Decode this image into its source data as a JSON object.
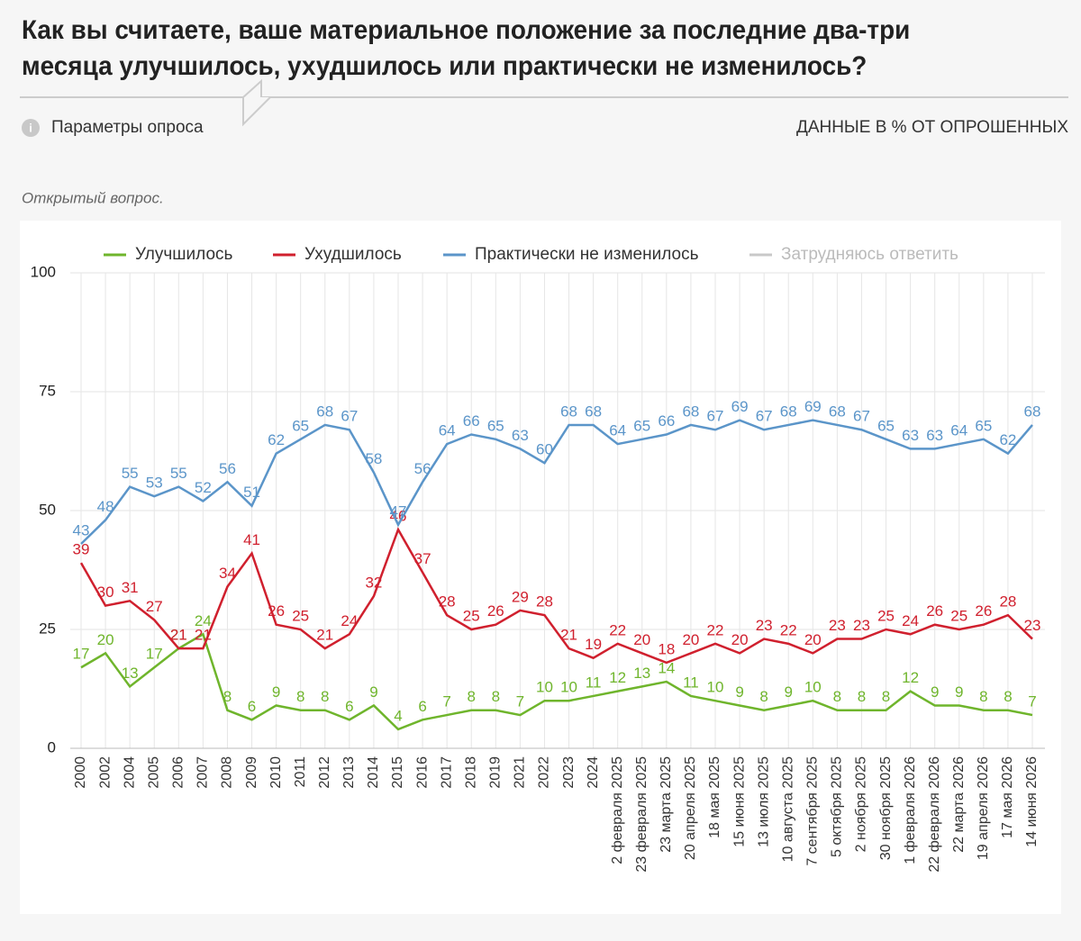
{
  "header": {
    "title_lines": [
      "Как вы считаете, ваше материальное положение за последние два-три",
      "месяца улучшилось, ухудшилось или практически не изменилось?"
    ],
    "params": "Параметры опроса",
    "units": "ДАННЫЕ В % ОТ ОПРОШЕННЫХ",
    "note": "Открытый вопрос."
  },
  "chart_data": {
    "type": "line",
    "categories": [
      "2000",
      "2002",
      "2004",
      "2005",
      "2006",
      "2007",
      "2008",
      "2009",
      "2010",
      "2011",
      "2012",
      "2013",
      "2014",
      "2015",
      "2016",
      "2017",
      "2018",
      "2019",
      "2021",
      "2022",
      "2023",
      "2024",
      "2 февраля 2025",
      "23 февраля 2025",
      "23 марта 2025",
      "20 апреля 2025",
      "18 мая 2025",
      "15 июня 2025",
      "13 июля 2025",
      "10 августа 2025",
      "7 сентября 2025",
      "5 октября 2025",
      "2 ноября 2025",
      "30 ноября 2025",
      "1 февраля 2026",
      "22 февраля 2026",
      "22 марта 2026",
      "19 апреля 2026",
      "17 мая 2026",
      "14 июня 2026"
    ],
    "series": [
      {
        "name": "Улучшилось",
        "color": "#6fb52c",
        "values": [
          17,
          20,
          13,
          17,
          21,
          24,
          8,
          6,
          9,
          8,
          8,
          6,
          9,
          4,
          6,
          7,
          8,
          8,
          7,
          10,
          10,
          11,
          12,
          13,
          14,
          11,
          10,
          9,
          8,
          9,
          10,
          8,
          8,
          8,
          12,
          9,
          9,
          8,
          8,
          7
        ]
      },
      {
        "name": "Ухудшилось",
        "color": "#d0202e",
        "values": [
          39,
          30,
          31,
          27,
          21,
          21,
          34,
          41,
          26,
          25,
          21,
          24,
          32,
          46,
          37,
          28,
          25,
          26,
          29,
          28,
          21,
          19,
          22,
          20,
          18,
          20,
          22,
          20,
          23,
          22,
          20,
          23,
          23,
          25,
          24,
          26,
          25,
          26,
          28,
          23
        ]
      },
      {
        "name": "Практически не изменилось",
        "color": "#5b95c9",
        "values": [
          43,
          48,
          55,
          53,
          55,
          52,
          56,
          51,
          62,
          65,
          68,
          67,
          58,
          47,
          56,
          64,
          66,
          65,
          63,
          60,
          68,
          68,
          64,
          65,
          66,
          68,
          67,
          69,
          67,
          68,
          69,
          68,
          67,
          65,
          63,
          63,
          64,
          65,
          62,
          68
        ]
      },
      {
        "name": "Затрудняюсь ответить",
        "color": "#c8c8c8",
        "visible": false
      }
    ],
    "ylim": [
      0,
      100
    ],
    "yticks": [
      0,
      25,
      50,
      75,
      100
    ],
    "grid": true,
    "data_labels": true
  }
}
